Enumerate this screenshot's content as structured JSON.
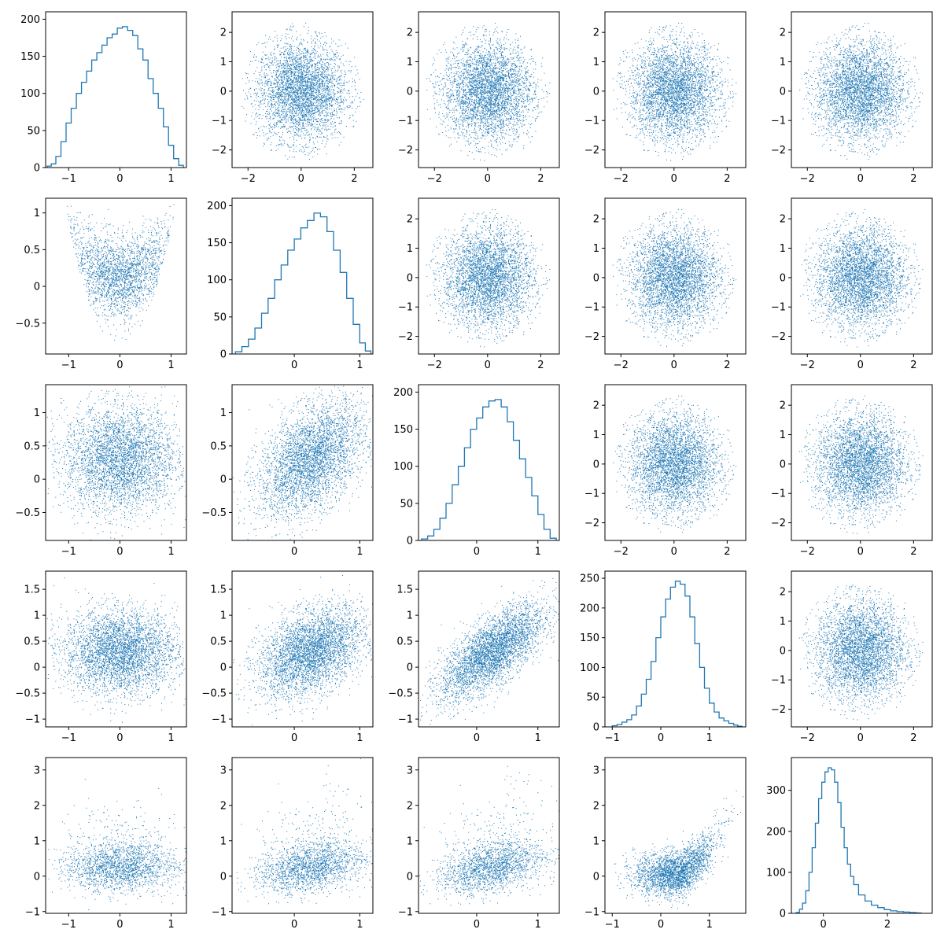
{
  "figure": {
    "layout": "5x5 corner plot",
    "color": "#1f77b4",
    "background": "#ffffff",
    "grid": false
  },
  "chart_data": [
    {
      "row": 0,
      "col": 0,
      "type": "histogram",
      "dim": 0,
      "xlim": [
        -1.45,
        1.3
      ],
      "ylim": [
        0,
        210
      ],
      "xticks": [
        -1,
        0,
        1
      ],
      "yticks": [
        0,
        50,
        100,
        150,
        200
      ],
      "x": [
        -1.38,
        -1.3,
        -1.2,
        -1.1,
        -1.0,
        -0.9,
        -0.8,
        -0.7,
        -0.6,
        -0.5,
        -0.4,
        -0.3,
        -0.2,
        -0.1,
        0.0,
        0.1,
        0.2,
        0.3,
        0.4,
        0.5,
        0.6,
        0.7,
        0.8,
        0.9,
        1.0,
        1.1,
        1.2
      ],
      "values": [
        2,
        5,
        15,
        35,
        60,
        80,
        100,
        115,
        130,
        145,
        155,
        165,
        175,
        180,
        188,
        190,
        185,
        178,
        160,
        145,
        120,
        100,
        80,
        55,
        30,
        12,
        3
      ]
    },
    {
      "row": 0,
      "col": 1,
      "type": "scatter",
      "xdim": 1,
      "ydim": 0,
      "xlim": [
        -2.6,
        2.7
      ],
      "ylim": [
        -2.6,
        2.7
      ],
      "xticks": [
        -2,
        0,
        2
      ],
      "yticks": [
        -2,
        -1,
        0,
        1,
        2
      ],
      "shape": "disk",
      "cx": 0,
      "cy": 0,
      "sx": 1.0,
      "sy": 1.0,
      "rho": 0
    },
    {
      "row": 0,
      "col": 2,
      "type": "scatter",
      "xdim": 2,
      "ydim": 0,
      "xlim": [
        -2.6,
        2.7
      ],
      "ylim": [
        -2.6,
        2.7
      ],
      "xticks": [
        -2,
        0,
        2
      ],
      "yticks": [
        -2,
        -1,
        0,
        1,
        2
      ],
      "shape": "disk",
      "cx": 0,
      "cy": 0,
      "sx": 1.0,
      "sy": 1.0,
      "rho": 0
    },
    {
      "row": 0,
      "col": 3,
      "type": "scatter",
      "xdim": 3,
      "ydim": 0,
      "xlim": [
        -2.6,
        2.7
      ],
      "ylim": [
        -2.6,
        2.7
      ],
      "xticks": [
        -2,
        0,
        2
      ],
      "yticks": [
        -2,
        -1,
        0,
        1,
        2
      ],
      "shape": "disk",
      "cx": 0,
      "cy": 0,
      "sx": 1.0,
      "sy": 1.0,
      "rho": 0
    },
    {
      "row": 0,
      "col": 4,
      "type": "scatter",
      "xdim": 4,
      "ydim": 0,
      "xlim": [
        -2.6,
        2.7
      ],
      "ylim": [
        -2.6,
        2.7
      ],
      "xticks": [
        -2,
        0,
        2
      ],
      "yticks": [
        -2,
        -1,
        0,
        1,
        2
      ],
      "shape": "disk",
      "cx": 0,
      "cy": 0,
      "sx": 1.0,
      "sy": 1.0,
      "rho": 0
    },
    {
      "row": 1,
      "col": 0,
      "type": "scatter",
      "xdim": 0,
      "ydim": 1,
      "xlim": [
        -1.45,
        1.3
      ],
      "ylim": [
        -0.92,
        1.2
      ],
      "xticks": [
        -1,
        0,
        1
      ],
      "yticks": [
        -0.5,
        0.0,
        0.5,
        1.0
      ],
      "shape": "parabola",
      "a": 0.5,
      "b": -0.4,
      "s": 0.6
    },
    {
      "row": 1,
      "col": 1,
      "type": "histogram",
      "dim": 1,
      "xlim": [
        -0.95,
        1.2
      ],
      "ylim": [
        0,
        210
      ],
      "xticks": [
        0,
        1
      ],
      "yticks": [
        0,
        50,
        100,
        150,
        200
      ],
      "x": [
        -0.85,
        -0.75,
        -0.65,
        -0.55,
        -0.45,
        -0.35,
        -0.25,
        -0.15,
        -0.05,
        0.05,
        0.15,
        0.25,
        0.35,
        0.45,
        0.55,
        0.65,
        0.75,
        0.85,
        0.95,
        1.05,
        1.12
      ],
      "values": [
        3,
        10,
        20,
        35,
        55,
        75,
        100,
        120,
        140,
        155,
        170,
        180,
        190,
        185,
        165,
        140,
        110,
        75,
        40,
        15,
        4
      ]
    },
    {
      "row": 1,
      "col": 2,
      "type": "scatter",
      "xdim": 2,
      "ydim": 1,
      "xlim": [
        -2.6,
        2.7
      ],
      "ylim": [
        -2.6,
        2.7
      ],
      "xticks": [
        -2,
        0,
        2
      ],
      "yticks": [
        -2,
        -1,
        0,
        1,
        2
      ],
      "shape": "disk",
      "cx": 0,
      "cy": 0,
      "sx": 1.0,
      "sy": 1.0,
      "rho": 0
    },
    {
      "row": 1,
      "col": 3,
      "type": "scatter",
      "xdim": 3,
      "ydim": 1,
      "xlim": [
        -2.6,
        2.7
      ],
      "ylim": [
        -2.6,
        2.7
      ],
      "xticks": [
        -2,
        0,
        2
      ],
      "yticks": [
        -2,
        -1,
        0,
        1,
        2
      ],
      "shape": "disk",
      "cx": 0,
      "cy": 0,
      "sx": 1.0,
      "sy": 1.0,
      "rho": 0
    },
    {
      "row": 1,
      "col": 4,
      "type": "scatter",
      "xdim": 4,
      "ydim": 1,
      "xlim": [
        -2.6,
        2.7
      ],
      "ylim": [
        -2.6,
        2.7
      ],
      "xticks": [
        -2,
        0,
        2
      ],
      "yticks": [
        -2,
        -1,
        0,
        1,
        2
      ],
      "shape": "disk",
      "cx": 0,
      "cy": 0,
      "sx": 1.0,
      "sy": 1.0,
      "rho": 0
    },
    {
      "row": 2,
      "col": 0,
      "type": "scatter",
      "xdim": 0,
      "ydim": 2,
      "xlim": [
        -1.45,
        1.3
      ],
      "ylim": [
        -0.92,
        1.42
      ],
      "xticks": [
        -1,
        0,
        1
      ],
      "yticks": [
        -0.5,
        0.0,
        0.5,
        1.0
      ],
      "shape": "blob",
      "cx": 0,
      "cy": 0.3,
      "sx": 0.55,
      "sy": 0.4,
      "rho": 0
    },
    {
      "row": 2,
      "col": 1,
      "type": "scatter",
      "xdim": 1,
      "ydim": 2,
      "xlim": [
        -0.95,
        1.2
      ],
      "ylim": [
        -0.92,
        1.42
      ],
      "xticks": [
        0,
        1
      ],
      "yticks": [
        -0.5,
        0.0,
        0.5,
        1.0
      ],
      "shape": "blob",
      "cx": 0.25,
      "cy": 0.3,
      "sx": 0.4,
      "sy": 0.42,
      "rho": 0.45
    },
    {
      "row": 2,
      "col": 2,
      "type": "histogram",
      "dim": 2,
      "xlim": [
        -0.95,
        1.35
      ],
      "ylim": [
        0,
        210
      ],
      "xticks": [
        0,
        1
      ],
      "yticks": [
        0,
        50,
        100,
        150,
        200
      ],
      "x": [
        -0.85,
        -0.75,
        -0.65,
        -0.55,
        -0.45,
        -0.35,
        -0.25,
        -0.15,
        -0.05,
        0.05,
        0.15,
        0.25,
        0.35,
        0.45,
        0.55,
        0.65,
        0.75,
        0.85,
        0.95,
        1.05,
        1.15,
        1.25
      ],
      "values": [
        2,
        6,
        15,
        30,
        50,
        75,
        100,
        125,
        150,
        165,
        180,
        188,
        190,
        180,
        160,
        135,
        110,
        85,
        60,
        35,
        15,
        3
      ]
    },
    {
      "row": 2,
      "col": 3,
      "type": "scatter",
      "xdim": 3,
      "ydim": 2,
      "xlim": [
        -2.6,
        2.7
      ],
      "ylim": [
        -2.6,
        2.7
      ],
      "xticks": [
        -2,
        0,
        2
      ],
      "yticks": [
        -2,
        -1,
        0,
        1,
        2
      ],
      "shape": "disk",
      "cx": 0,
      "cy": 0,
      "sx": 1.0,
      "sy": 1.0,
      "rho": 0
    },
    {
      "row": 2,
      "col": 4,
      "type": "scatter",
      "xdim": 4,
      "ydim": 2,
      "xlim": [
        -2.6,
        2.7
      ],
      "ylim": [
        -2.6,
        2.7
      ],
      "xticks": [
        -2,
        0,
        2
      ],
      "yticks": [
        -2,
        -1,
        0,
        1,
        2
      ],
      "shape": "disk",
      "cx": 0,
      "cy": 0,
      "sx": 1.0,
      "sy": 1.0,
      "rho": 0
    },
    {
      "row": 3,
      "col": 0,
      "type": "scatter",
      "xdim": 0,
      "ydim": 3,
      "xlim": [
        -1.45,
        1.3
      ],
      "ylim": [
        -1.15,
        1.85
      ],
      "xticks": [
        -1,
        0,
        1
      ],
      "yticks": [
        -1.0,
        -0.5,
        0.0,
        0.5,
        1.0,
        1.5
      ],
      "shape": "blob",
      "cx": 0,
      "cy": 0.3,
      "sx": 0.55,
      "sy": 0.4,
      "rho": 0
    },
    {
      "row": 3,
      "col": 1,
      "type": "scatter",
      "xdim": 1,
      "ydim": 3,
      "xlim": [
        -0.95,
        1.2
      ],
      "ylim": [
        -1.15,
        1.85
      ],
      "xticks": [
        0,
        1
      ],
      "yticks": [
        -1.0,
        -0.5,
        0.0,
        0.5,
        1.0,
        1.5
      ],
      "shape": "blob",
      "cx": 0.25,
      "cy": 0.3,
      "sx": 0.4,
      "sy": 0.42,
      "rho": 0.4
    },
    {
      "row": 3,
      "col": 2,
      "type": "scatter",
      "xdim": 2,
      "ydim": 3,
      "xlim": [
        -0.95,
        1.35
      ],
      "ylim": [
        -1.15,
        1.85
      ],
      "xticks": [
        0,
        1
      ],
      "yticks": [
        -1.0,
        -0.5,
        0.0,
        0.5,
        1.0,
        1.5
      ],
      "shape": "blob",
      "cx": 0.25,
      "cy": 0.3,
      "sx": 0.42,
      "sy": 0.45,
      "rho": 0.7
    },
    {
      "row": 3,
      "col": 3,
      "type": "histogram",
      "dim": 3,
      "xlim": [
        -1.15,
        1.75
      ],
      "ylim": [
        0,
        262
      ],
      "xticks": [
        -1,
        0,
        1
      ],
      "yticks": [
        0,
        50,
        100,
        150,
        200,
        250
      ],
      "x": [
        -0.95,
        -0.85,
        -0.75,
        -0.65,
        -0.55,
        -0.45,
        -0.35,
        -0.25,
        -0.15,
        -0.05,
        0.05,
        0.15,
        0.25,
        0.35,
        0.45,
        0.55,
        0.65,
        0.75,
        0.85,
        0.95,
        1.05,
        1.15,
        1.25,
        1.35,
        1.45,
        1.55,
        1.62
      ],
      "values": [
        2,
        4,
        8,
        12,
        20,
        35,
        55,
        80,
        110,
        150,
        185,
        215,
        235,
        245,
        240,
        220,
        185,
        140,
        100,
        65,
        40,
        25,
        15,
        10,
        6,
        3,
        1
      ]
    },
    {
      "row": 3,
      "col": 4,
      "type": "scatter",
      "xdim": 4,
      "ydim": 3,
      "xlim": [
        -2.6,
        2.7
      ],
      "ylim": [
        -2.6,
        2.7
      ],
      "xticks": [
        -2,
        0,
        2
      ],
      "yticks": [
        -2,
        -1,
        0,
        1,
        2
      ],
      "shape": "disk",
      "cx": 0,
      "cy": 0,
      "sx": 1.0,
      "sy": 1.0,
      "rho": 0
    },
    {
      "row": 4,
      "col": 0,
      "type": "scatter",
      "xdim": 0,
      "ydim": 4,
      "xlim": [
        -1.45,
        1.3
      ],
      "ylim": [
        -1.05,
        3.35
      ],
      "xticks": [
        -1,
        0,
        1
      ],
      "yticks": [
        -1,
        0,
        1,
        2,
        3
      ],
      "shape": "skew",
      "cx": 0,
      "cy": 0.25,
      "sx": 0.55,
      "sy": 0.35,
      "rho": 0
    },
    {
      "row": 4,
      "col": 1,
      "type": "scatter",
      "xdim": 1,
      "ydim": 4,
      "xlim": [
        -0.95,
        1.2
      ],
      "ylim": [
        -1.05,
        3.35
      ],
      "xticks": [
        0,
        1
      ],
      "yticks": [
        -1,
        0,
        1,
        2,
        3
      ],
      "shape": "skew",
      "cx": 0.25,
      "cy": 0.25,
      "sx": 0.4,
      "sy": 0.35,
      "rho": 0.35
    },
    {
      "row": 4,
      "col": 2,
      "type": "scatter",
      "xdim": 2,
      "ydim": 4,
      "xlim": [
        -0.95,
        1.35
      ],
      "ylim": [
        -1.05,
        3.35
      ],
      "xticks": [
        0,
        1
      ],
      "yticks": [
        -1,
        0,
        1,
        2,
        3
      ],
      "shape": "skew",
      "cx": 0.25,
      "cy": 0.25,
      "sx": 0.42,
      "sy": 0.35,
      "rho": 0.45
    },
    {
      "row": 4,
      "col": 3,
      "type": "scatter",
      "xdim": 3,
      "ydim": 4,
      "xlim": [
        -1.15,
        1.75
      ],
      "ylim": [
        -1.05,
        3.35
      ],
      "xticks": [
        -1,
        0,
        1
      ],
      "yticks": [
        -1,
        0,
        1,
        2,
        3
      ],
      "shape": "curve",
      "cx": 0.3,
      "s": 0.4
    },
    {
      "row": 4,
      "col": 4,
      "type": "histogram",
      "dim": 4,
      "xlim": [
        -1.0,
        3.4
      ],
      "ylim": [
        0,
        380
      ],
      "xticks": [
        0,
        2
      ],
      "yticks": [
        0,
        100,
        200,
        300
      ],
      "x": [
        -0.8,
        -0.7,
        -0.6,
        -0.5,
        -0.4,
        -0.3,
        -0.2,
        -0.1,
        0.0,
        0.1,
        0.2,
        0.3,
        0.4,
        0.5,
        0.6,
        0.7,
        0.8,
        0.9,
        1.0,
        1.2,
        1.4,
        1.6,
        1.8,
        2.0,
        2.2,
        2.4,
        2.6,
        2.8,
        3.0
      ],
      "values": [
        2,
        10,
        25,
        55,
        100,
        160,
        220,
        280,
        320,
        345,
        355,
        350,
        320,
        270,
        210,
        160,
        120,
        90,
        70,
        45,
        30,
        20,
        14,
        9,
        6,
        4,
        3,
        2,
        1
      ]
    }
  ]
}
